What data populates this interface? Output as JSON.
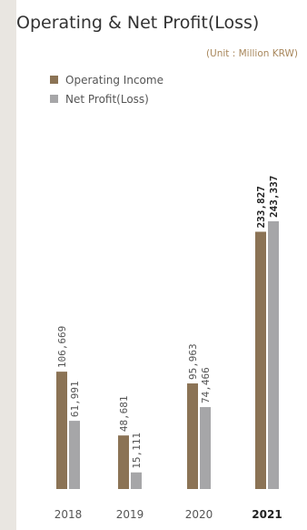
{
  "chart_data": {
    "type": "bar",
    "title": "Operating & Net Profit(Loss)",
    "unit_note": "(Unit : Million KRW)",
    "categories": [
      "2018",
      "2019",
      "2020",
      "2021"
    ],
    "highlight_category": "2021",
    "series": [
      {
        "name": "Operating Income",
        "color": "#8b7355",
        "values": [
          106669,
          48681,
          95963,
          233827
        ],
        "labels": [
          "106,669",
          "48,681",
          "95,963",
          "233,827"
        ]
      },
      {
        "name": "Net Profit(Loss)",
        "color": "#a6a6a8",
        "values": [
          61991,
          15111,
          74466,
          243337
        ],
        "labels": [
          "61,991",
          "15,111",
          "74,466",
          "243,337"
        ]
      }
    ],
    "ylim": [
      0,
      260000
    ],
    "xlabel": "",
    "ylabel": "",
    "legend": "top-left",
    "grid": false
  }
}
